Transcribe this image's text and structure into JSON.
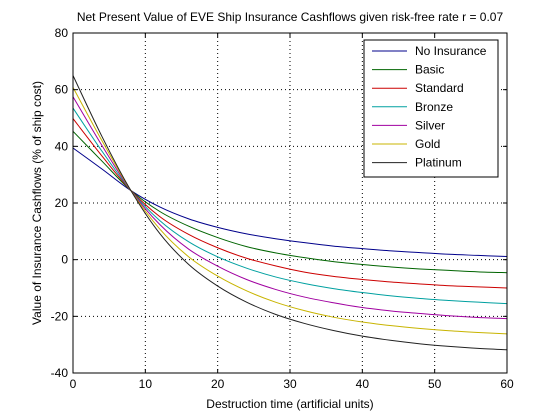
{
  "chart_data": {
    "type": "line",
    "title": "Net Present Value of EVE Ship Insurance Cashflows given risk-free rate r = 0.07",
    "xlabel": "Destruction time (artificial units)",
    "ylabel": "Value of Insurance Cashflows (% of ship cost)",
    "xlim": [
      0,
      60
    ],
    "ylim": [
      -40,
      80
    ],
    "xticks": [
      "0",
      "10",
      "20",
      "30",
      "40",
      "50",
      "60"
    ],
    "yticks": [
      "-40",
      "-20",
      "0",
      "20",
      "40",
      "60",
      "80"
    ],
    "grid": true,
    "legend_position": "top-right",
    "x": [
      0,
      4,
      8,
      12,
      16,
      20,
      24,
      28,
      32,
      36,
      40,
      44,
      48,
      52,
      56,
      60
    ],
    "series": [
      {
        "name": "No Insurance",
        "color": "#00008b",
        "values": [
          39.4,
          32.0,
          24.4,
          18.6,
          14.4,
          11.4,
          9.1,
          7.4,
          6.0,
          4.8,
          3.9,
          3.1,
          2.5,
          1.9,
          1.5,
          1.1
        ]
      },
      {
        "name": "Basic",
        "color": "#006400",
        "values": [
          45.3,
          34.8,
          24.4,
          17.0,
          11.8,
          7.8,
          4.6,
          2.4,
          0.7,
          -0.7,
          -1.7,
          -2.6,
          -3.3,
          -3.8,
          -4.3,
          -4.6
        ]
      },
      {
        "name": "Standard",
        "color": "#cc0000",
        "values": [
          49.8,
          36.6,
          24.4,
          15.2,
          8.9,
          4.2,
          0.5,
          -2.2,
          -4.4,
          -5.9,
          -7.0,
          -7.9,
          -8.6,
          -9.2,
          -9.6,
          -10.0
        ]
      },
      {
        "name": "Bronze",
        "color": "#00a0a0",
        "values": [
          53.5,
          38.3,
          24.4,
          13.8,
          6.3,
          1.0,
          -3.0,
          -6.1,
          -8.4,
          -10.2,
          -11.6,
          -12.8,
          -13.7,
          -14.4,
          -15.0,
          -15.5
        ]
      },
      {
        "name": "Silver",
        "color": "#a000a0",
        "values": [
          57.5,
          40.3,
          24.4,
          12.4,
          3.7,
          -2.3,
          -7.0,
          -10.5,
          -13.2,
          -15.2,
          -16.9,
          -18.1,
          -19.0,
          -19.8,
          -20.4,
          -20.8
        ]
      },
      {
        "name": "Gold",
        "color": "#c8b400",
        "values": [
          60.8,
          42.0,
          24.4,
          10.8,
          1.0,
          -5.8,
          -11.0,
          -15.0,
          -18.0,
          -20.3,
          -22.0,
          -23.3,
          -24.3,
          -25.1,
          -25.7,
          -26.2
        ]
      },
      {
        "name": "Platinum",
        "color": "#222222",
        "values": [
          65.0,
          43.5,
          24.4,
          9.2,
          -1.7,
          -9.3,
          -15.0,
          -19.3,
          -22.5,
          -25.0,
          -27.0,
          -28.5,
          -29.7,
          -30.6,
          -31.3,
          -31.8
        ]
      }
    ]
  }
}
